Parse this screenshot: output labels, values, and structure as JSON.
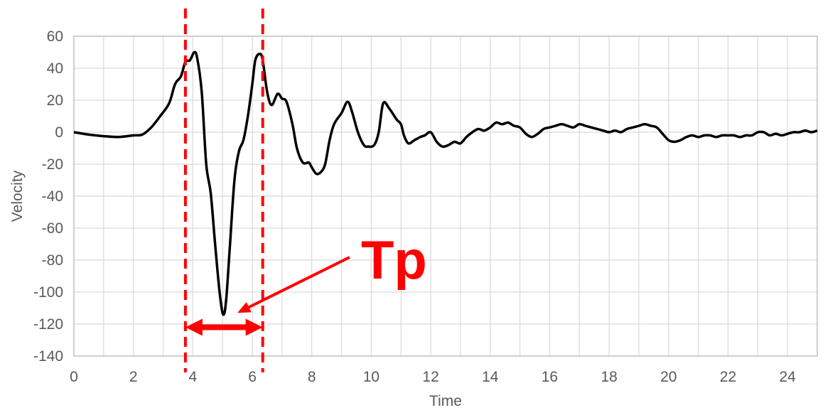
{
  "chart_data": {
    "type": "line",
    "title": "",
    "xlabel": "Time",
    "ylabel": "Velocity",
    "xlim": [
      0,
      25
    ],
    "ylim": [
      -140,
      60
    ],
    "xticks": [
      0,
      2,
      4,
      6,
      8,
      10,
      12,
      14,
      16,
      18,
      20,
      22,
      24
    ],
    "yticks": [
      60,
      40,
      20,
      0,
      -20,
      -40,
      -60,
      -80,
      -100,
      -120,
      -140
    ],
    "grid": true,
    "legend": "none",
    "series": [
      {
        "color": "#000000",
        "points": [
          [
            0,
            0
          ],
          [
            0.5,
            -1.5
          ],
          [
            1,
            -2.5
          ],
          [
            1.5,
            -3
          ],
          [
            2,
            -2
          ],
          [
            2.3,
            -1.5
          ],
          [
            2.6,
            3
          ],
          [
            2.9,
            10
          ],
          [
            3.2,
            18
          ],
          [
            3.4,
            30
          ],
          [
            3.6,
            35
          ],
          [
            3.75,
            44
          ],
          [
            3.9,
            45
          ],
          [
            4.05,
            50
          ],
          [
            4.15,
            46
          ],
          [
            4.3,
            25
          ],
          [
            4.45,
            -20
          ],
          [
            4.6,
            -38
          ],
          [
            4.75,
            -70
          ],
          [
            4.9,
            -100
          ],
          [
            5.02,
            -114
          ],
          [
            5.12,
            -105
          ],
          [
            5.25,
            -70
          ],
          [
            5.4,
            -30
          ],
          [
            5.55,
            -12
          ],
          [
            5.7,
            -5
          ],
          [
            5.85,
            10
          ],
          [
            6.0,
            30
          ],
          [
            6.1,
            45
          ],
          [
            6.25,
            49
          ],
          [
            6.35,
            45
          ],
          [
            6.5,
            25
          ],
          [
            6.65,
            17
          ],
          [
            6.85,
            24
          ],
          [
            7.0,
            21
          ],
          [
            7.15,
            19
          ],
          [
            7.35,
            5
          ],
          [
            7.5,
            -10
          ],
          [
            7.7,
            -19
          ],
          [
            7.9,
            -19
          ],
          [
            8.0,
            -22
          ],
          [
            8.15,
            -26
          ],
          [
            8.3,
            -25
          ],
          [
            8.45,
            -20
          ],
          [
            8.6,
            -5
          ],
          [
            8.75,
            5
          ],
          [
            9.0,
            12
          ],
          [
            9.2,
            19
          ],
          [
            9.35,
            13
          ],
          [
            9.55,
            0
          ],
          [
            9.75,
            -8
          ],
          [
            9.9,
            -9
          ],
          [
            10.1,
            -8
          ],
          [
            10.25,
            0
          ],
          [
            10.4,
            18
          ],
          [
            10.6,
            15
          ],
          [
            10.85,
            8
          ],
          [
            11.0,
            5
          ],
          [
            11.1,
            -2
          ],
          [
            11.25,
            -7
          ],
          [
            11.45,
            -5
          ],
          [
            11.65,
            -3
          ],
          [
            11.8,
            -2
          ],
          [
            12.0,
            0
          ],
          [
            12.2,
            -6
          ],
          [
            12.4,
            -9
          ],
          [
            12.6,
            -8
          ],
          [
            12.8,
            -6
          ],
          [
            13.0,
            -7
          ],
          [
            13.2,
            -3
          ],
          [
            13.4,
            0
          ],
          [
            13.6,
            2
          ],
          [
            13.8,
            1
          ],
          [
            14.0,
            3
          ],
          [
            14.2,
            6
          ],
          [
            14.4,
            5
          ],
          [
            14.6,
            6
          ],
          [
            14.8,
            4
          ],
          [
            15.0,
            3
          ],
          [
            15.2,
            -1
          ],
          [
            15.4,
            -3
          ],
          [
            15.6,
            -1
          ],
          [
            15.8,
            2
          ],
          [
            16.0,
            3
          ],
          [
            16.2,
            4
          ],
          [
            16.4,
            5
          ],
          [
            16.6,
            4
          ],
          [
            16.8,
            3
          ],
          [
            17.0,
            5
          ],
          [
            17.2,
            4
          ],
          [
            17.4,
            3
          ],
          [
            17.6,
            2
          ],
          [
            17.8,
            1
          ],
          [
            18.0,
            0
          ],
          [
            18.2,
            1
          ],
          [
            18.4,
            0
          ],
          [
            18.6,
            2
          ],
          [
            18.8,
            3
          ],
          [
            19.0,
            4
          ],
          [
            19.2,
            5
          ],
          [
            19.4,
            4
          ],
          [
            19.6,
            3
          ],
          [
            19.8,
            -1
          ],
          [
            20.0,
            -5
          ],
          [
            20.2,
            -6
          ],
          [
            20.4,
            -5
          ],
          [
            20.6,
            -3
          ],
          [
            20.8,
            -2
          ],
          [
            21.0,
            -3
          ],
          [
            21.2,
            -2
          ],
          [
            21.4,
            -2
          ],
          [
            21.6,
            -3
          ],
          [
            21.8,
            -2
          ],
          [
            22.0,
            -2
          ],
          [
            22.2,
            -2
          ],
          [
            22.4,
            -3
          ],
          [
            22.6,
            -2
          ],
          [
            22.8,
            -2
          ],
          [
            23.0,
            0
          ],
          [
            23.2,
            0
          ],
          [
            23.4,
            -2
          ],
          [
            23.6,
            -1
          ],
          [
            23.8,
            -2
          ],
          [
            24.0,
            -1
          ],
          [
            24.2,
            0
          ],
          [
            24.4,
            0
          ],
          [
            24.6,
            1
          ],
          [
            24.8,
            0
          ],
          [
            25.0,
            1
          ]
        ]
      }
    ],
    "annotations": {
      "label": "Tp",
      "color": "#ff0000",
      "vlines_x": [
        3.75,
        6.35
      ],
      "bracket_y": -122,
      "arrow_to": [
        5.5,
        -113
      ]
    }
  }
}
